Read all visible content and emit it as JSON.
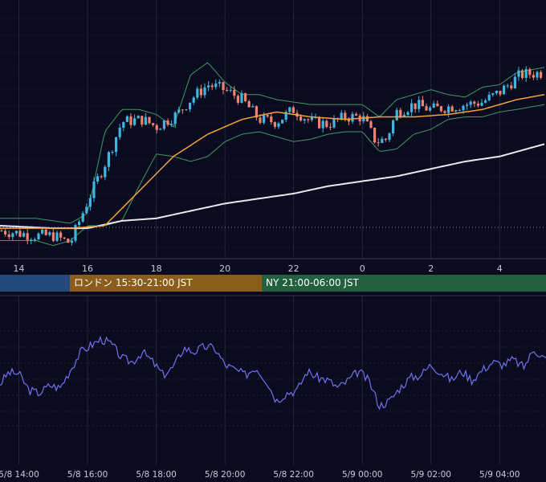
{
  "sessions": [
    {
      "label": "",
      "color": "#23497a"
    },
    {
      "label": "ロンドン 15:30-21:00 JST",
      "color": "#8a5d1b"
    },
    {
      "label": "NY 21:00-06:00 JST",
      "color": "#22603f"
    }
  ],
  "colors": {
    "background": "#0b0b1f",
    "grid": "#2a2d3d",
    "candle_up": "#3fb6e0",
    "candle_down": "#f0826e",
    "ma_fast": "#f2a33a",
    "ma_slow": "#e8e8f0",
    "bollinger": "#3f9a63",
    "oscillator": "#6f72f0"
  },
  "chart_data": [
    {
      "type": "candlestick",
      "title": "",
      "x_tick_labels": [
        "14",
        "16",
        "18",
        "20",
        "22",
        "0",
        "2",
        "4"
      ],
      "x_ticks_hours": [
        14,
        16,
        18,
        20,
        22,
        24,
        26,
        28
      ],
      "x_range_hours": [
        13.45,
        29.35
      ],
      "reference_line": "dotted horizontal",
      "series": [
        {
          "kind": "candles",
          "anchors_hours": [
            13.5,
            14.5,
            15.0,
            15.5,
            16.0,
            16.6,
            17.0,
            17.6,
            18.0,
            18.6,
            19.0,
            19.5,
            20.0,
            20.5,
            21.0,
            21.5,
            22.0,
            22.5,
            23.0,
            23.5,
            24.0,
            24.4,
            24.7,
            25.0,
            25.5,
            26.0,
            26.5,
            27.0,
            27.5,
            28.0,
            28.6,
            29.3
          ],
          "anchors_level": [
            10,
            8,
            8,
            5,
            22,
            40,
            54,
            55,
            52,
            57,
            63,
            69,
            67,
            63,
            55,
            54,
            59,
            54,
            53,
            56,
            56,
            46,
            47,
            58,
            61,
            59,
            60,
            61,
            62,
            66,
            73,
            74
          ]
        },
        {
          "kind": "line",
          "name": "",
          "color": "#f2a33a",
          "points_hours": [
            13.5,
            14.5,
            15.5,
            16.5,
            17.5,
            18.5,
            19.5,
            20.5,
            21.5,
            22.5,
            23.5,
            24.5,
            25.5,
            26.5,
            27.5,
            28.5,
            29.3
          ],
          "points_level": [
            11,
            11,
            11,
            12,
            26,
            40,
            49,
            55,
            58,
            56,
            55,
            56,
            56,
            57,
            59,
            63,
            65
          ]
        },
        {
          "kind": "line",
          "name": "",
          "color": "#e8e8f0",
          "points_hours": [
            13.5,
            15.0,
            16.0,
            17.0,
            18.0,
            19.0,
            20.0,
            21.0,
            22.0,
            23.0,
            24.0,
            25.0,
            26.0,
            27.0,
            28.0,
            29.3
          ],
          "points_level": [
            12,
            11,
            11,
            14,
            15,
            18,
            21,
            23,
            25,
            28,
            30,
            32,
            35,
            38,
            40,
            45
          ]
        },
        {
          "kind": "band",
          "name": "",
          "color": "#3f9a63",
          "points_hours": [
            13.5,
            14.5,
            15.0,
            15.5,
            16.0,
            16.5,
            17.0,
            17.5,
            18.0,
            18.5,
            19.0,
            19.5,
            20.0,
            20.5,
            21.0,
            21.5,
            22.0,
            22.5,
            23.0,
            23.5,
            24.0,
            24.5,
            25.0,
            25.5,
            26.0,
            26.5,
            27.0,
            27.5,
            28.0,
            28.5,
            29.3
          ],
          "upper_level": [
            15,
            15,
            14,
            13,
            17,
            50,
            59,
            59,
            57,
            52,
            73,
            78,
            70,
            65,
            65,
            63,
            62,
            61,
            61,
            61,
            61,
            56,
            63,
            65,
            67,
            65,
            64,
            68,
            69,
            74,
            76
          ],
          "lower_level": [
            6,
            6,
            4,
            6,
            12,
            12,
            14,
            28,
            41,
            40,
            38,
            40,
            46,
            49,
            50,
            48,
            46,
            47,
            49,
            50,
            50,
            42,
            43,
            49,
            51,
            55,
            56,
            56,
            58,
            59,
            61
          ]
        }
      ]
    },
    {
      "type": "line",
      "title": "",
      "x_tick_labels": [
        "5/8 14:00",
        "5/8 16:00",
        "5/8 18:00",
        "5/8 20:00",
        "5/8 22:00",
        "5/9 00:00",
        "5/9 02:00",
        "5/9 04:00"
      ],
      "x_ticks_hours": [
        14,
        16,
        18,
        20,
        22,
        24,
        26,
        28
      ],
      "x_range_hours": [
        13.45,
        29.35
      ],
      "series": [
        {
          "name": "",
          "color": "#6f72f0",
          "points_hours": [
            13.45,
            13.7,
            14.0,
            14.3,
            14.6,
            14.9,
            15.2,
            15.5,
            15.8,
            16.1,
            16.4,
            16.7,
            17.0,
            17.3,
            17.6,
            17.9,
            18.2,
            18.5,
            18.8,
            19.1,
            19.4,
            19.7,
            20.0,
            20.3,
            20.6,
            20.9,
            21.2,
            21.5,
            21.8,
            22.1,
            22.4,
            22.7,
            23.0,
            23.3,
            23.6,
            23.9,
            24.2,
            24.5,
            24.8,
            25.1,
            25.4,
            25.7,
            26.0,
            26.3,
            26.6,
            26.9,
            27.2,
            27.5,
            27.8,
            28.1,
            28.4,
            28.7,
            29.0,
            29.35
          ],
          "values": [
            45,
            54,
            53,
            40,
            38,
            44,
            42,
            56,
            70,
            75,
            80,
            76,
            65,
            62,
            70,
            62,
            52,
            58,
            73,
            70,
            74,
            73,
            60,
            56,
            52,
            58,
            48,
            32,
            38,
            40,
            55,
            50,
            48,
            42,
            48,
            55,
            47,
            28,
            32,
            42,
            50,
            52,
            60,
            54,
            48,
            55,
            48,
            56,
            62,
            60,
            64,
            58,
            72,
            64
          ]
        }
      ]
    }
  ]
}
